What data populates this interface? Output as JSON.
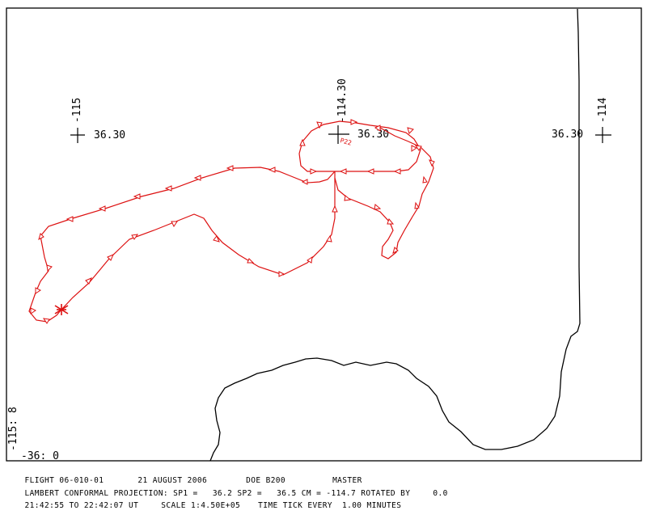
{
  "colors": {
    "track": "#dd1111",
    "ink": "#000000",
    "background": "#ffffff"
  },
  "grid_labels": {
    "west_lon": "-115",
    "west_lat": "36.30",
    "center_lon": "-114.30",
    "center_lat": "36.30",
    "east_lon": "-114",
    "east_lat": "36.30",
    "corner_lon": "-115: 8",
    "corner_lat": "-36: 0"
  },
  "track": {
    "annotation": "P22",
    "time_tick_marker": "triangle-arrow"
  },
  "footer": {
    "flight": "FLIGHT 06-010-01",
    "date": "21 AUGUST 2006",
    "aircraft": "DOE B200",
    "role": "MASTER",
    "projection_label": "LAMBERT CONFORMAL PROJECTION:",
    "sp1_label": "SP1 =",
    "sp1_value": "36.2",
    "sp2_label": "SP2 =",
    "sp2_value": "36.5",
    "cm_label": "CM =",
    "cm_value": "-114.7",
    "rotated_label": "ROTATED BY",
    "rotated_value": "0.0",
    "time_range": "21:42:55 TO 22:42:07 UT",
    "scale_label": "SCALE 1:4.50E+05",
    "tick_label": "TIME TICK EVERY",
    "tick_value": "1.00 MINUTES"
  }
}
